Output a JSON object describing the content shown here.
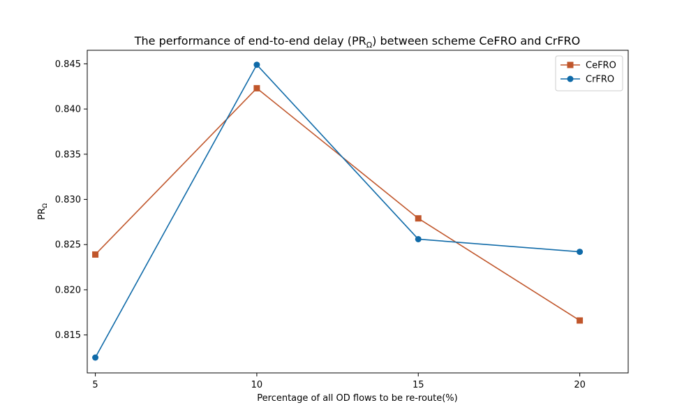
{
  "chart_data": {
    "type": "line",
    "title": {
      "prefix": "The performance of end-to-end delay (PR",
      "subscript": "Ω",
      "suffix": ") between scheme CeFRO and CrFRO"
    },
    "xlabel": "Percentage of all OD flows to be re-route(%)",
    "ylabel": {
      "main": "PR",
      "subscript": "Ω"
    },
    "x": [
      5,
      10,
      15,
      20
    ],
    "x_tick_labels": [
      "5",
      "10",
      "15",
      "20"
    ],
    "xlim": [
      4.75,
      21.5
    ],
    "ylim": [
      0.8108,
      0.8465
    ],
    "y_ticks": [
      0.815,
      0.82,
      0.825,
      0.83,
      0.835,
      0.84,
      0.845
    ],
    "y_tick_labels": [
      "0.815",
      "0.820",
      "0.825",
      "0.830",
      "0.835",
      "0.840",
      "0.845"
    ],
    "grid": false,
    "legend_position": "top-right",
    "series": [
      {
        "name": "CeFRO",
        "color": "#c0562b",
        "marker": "square",
        "values": [
          0.8239,
          0.8423,
          0.8279,
          0.8166
        ]
      },
      {
        "name": "CrFRO",
        "color": "#0f6aa8",
        "marker": "circle",
        "values": [
          0.8125,
          0.8449,
          0.8256,
          0.8242
        ]
      }
    ]
  }
}
